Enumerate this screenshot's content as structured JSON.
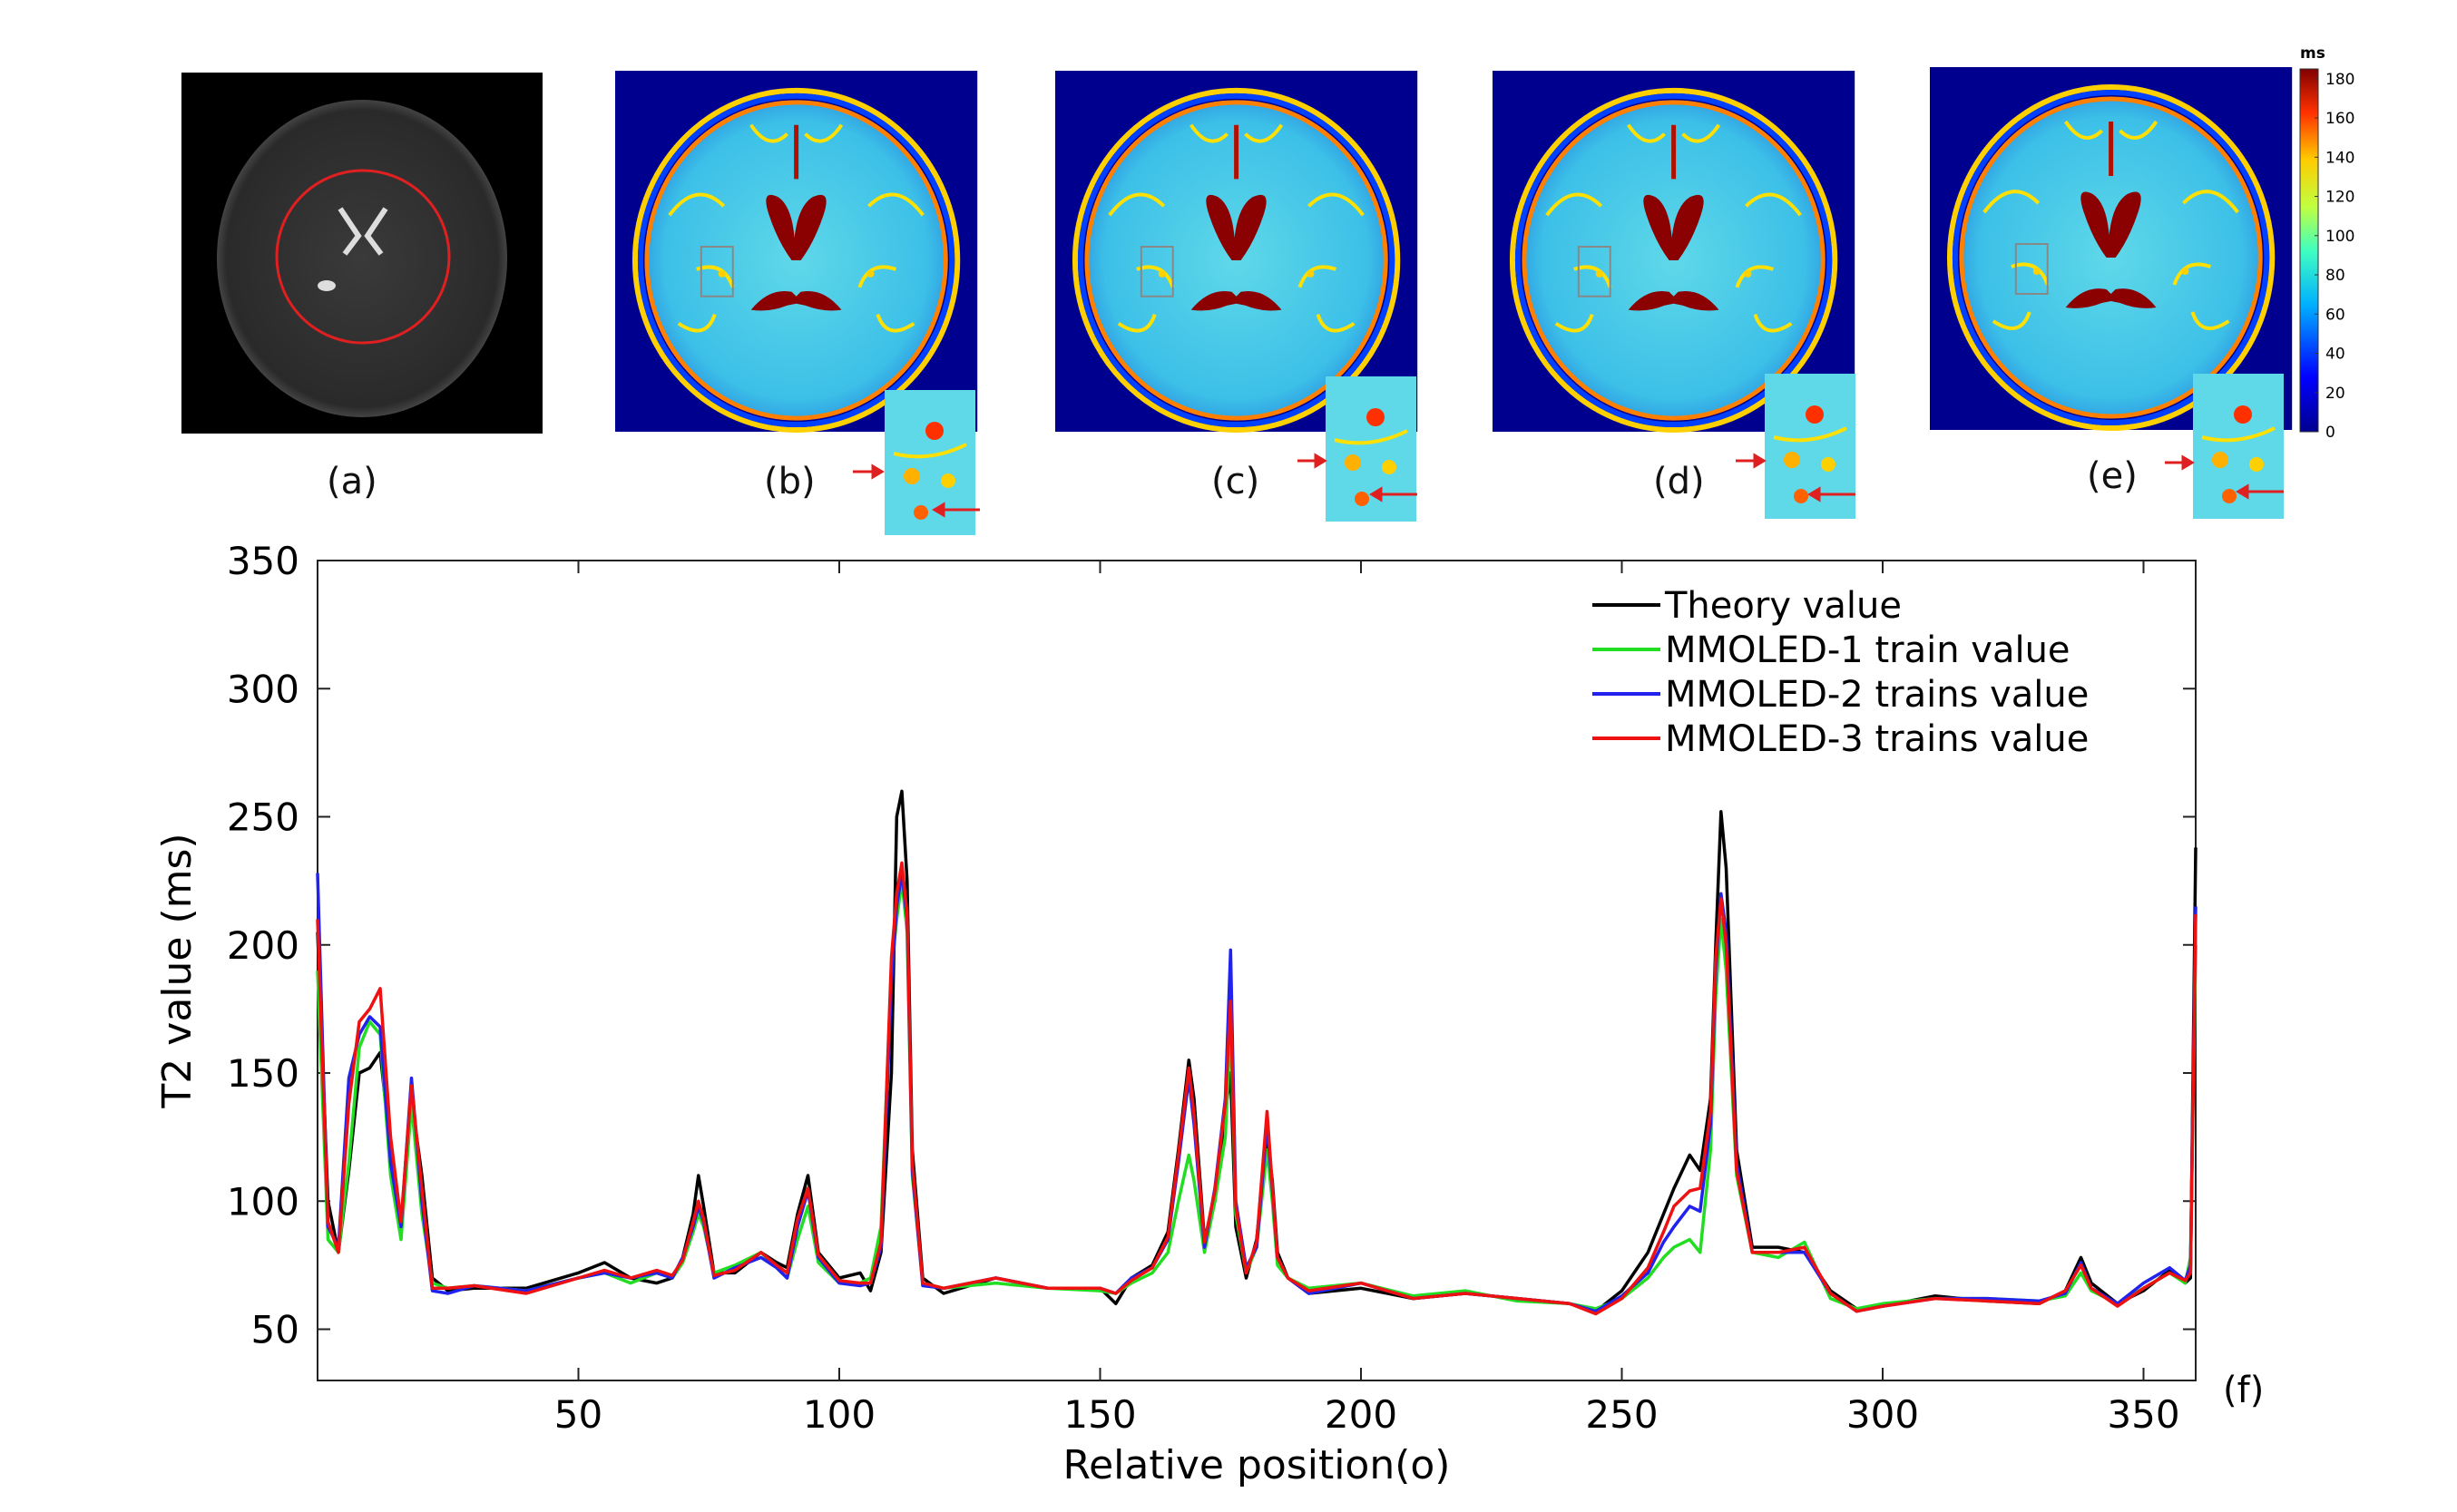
{
  "panels": [
    {
      "label": "(a)",
      "kind": "mri"
    },
    {
      "label": "(b)",
      "kind": "t2map"
    },
    {
      "label": "(c)",
      "kind": "t2map"
    },
    {
      "label": "(d)",
      "kind": "t2map"
    },
    {
      "label": "(e)",
      "kind": "t2map"
    }
  ],
  "colorbar": {
    "unit": "ms",
    "ticks": [
      "0",
      "20",
      "40",
      "60",
      "80",
      "100",
      "120",
      "140",
      "160",
      "180"
    ],
    "tick_values": [
      0,
      20,
      40,
      60,
      80,
      100,
      120,
      140,
      160,
      180
    ],
    "range": [
      0,
      185
    ]
  },
  "chart_data": {
    "type": "line",
    "panel_label": "(f)",
    "xlabel": "Relative position(o)",
    "ylabel": "T2 value (ms)",
    "xlim": [
      0,
      360
    ],
    "ylim": [
      30,
      350
    ],
    "xticks": [
      50,
      100,
      150,
      200,
      250,
      300,
      350
    ],
    "yticks": [
      50,
      100,
      150,
      200,
      250,
      300,
      350
    ],
    "legend_position": "top-right",
    "series": [
      {
        "name": "Theory value",
        "color": "#000000",
        "x": [
          0,
          2,
          4,
          6,
          8,
          10,
          12,
          14,
          16,
          18,
          20,
          22,
          25,
          30,
          40,
          50,
          55,
          60,
          65,
          68,
          70,
          72,
          73,
          74,
          76,
          80,
          85,
          88,
          90,
          92,
          94,
          96,
          100,
          104,
          106,
          108,
          110,
          111,
          112,
          113,
          114,
          116,
          120,
          130,
          140,
          150,
          153,
          156,
          160,
          163,
          165,
          167,
          168,
          170,
          172,
          174,
          175,
          176,
          178,
          180,
          182,
          183,
          184,
          186,
          190,
          200,
          210,
          220,
          230,
          240,
          245,
          250,
          255,
          258,
          260,
          263,
          265,
          267,
          268,
          269,
          270,
          272,
          275,
          280,
          285,
          290,
          295,
          300,
          310,
          320,
          330,
          335,
          338,
          340,
          345,
          350,
          355,
          358,
          359,
          360
        ],
        "y": [
          205,
          100,
          80,
          112,
          150,
          152,
          158,
          120,
          88,
          140,
          110,
          70,
          65,
          66,
          66,
          72,
          76,
          70,
          68,
          70,
          78,
          95,
          110,
          98,
          72,
          72,
          80,
          76,
          74,
          95,
          110,
          80,
          70,
          72,
          65,
          80,
          150,
          250,
          260,
          225,
          120,
          70,
          64,
          70,
          66,
          66,
          60,
          70,
          75,
          88,
          120,
          155,
          140,
          85,
          100,
          135,
          150,
          90,
          70,
          85,
          125,
          108,
          80,
          70,
          64,
          66,
          62,
          64,
          62,
          60,
          57,
          65,
          80,
          95,
          105,
          118,
          112,
          140,
          200,
          252,
          230,
          120,
          82,
          82,
          80,
          65,
          58,
          59,
          63,
          61,
          60,
          65,
          78,
          68,
          60,
          65,
          73,
          68,
          70,
          238
        ]
      },
      {
        "name": "MMOLED-1 train value",
        "color": "#22dd22",
        "x": [
          0,
          2,
          4,
          6,
          8,
          10,
          12,
          14,
          16,
          18,
          20,
          22,
          25,
          30,
          40,
          50,
          55,
          60,
          65,
          68,
          70,
          72,
          73,
          74,
          76,
          80,
          85,
          88,
          90,
          92,
          94,
          96,
          100,
          104,
          106,
          108,
          110,
          111,
          112,
          113,
          114,
          116,
          120,
          130,
          140,
          150,
          153,
          156,
          160,
          163,
          165,
          167,
          168,
          170,
          172,
          174,
          175,
          176,
          178,
          180,
          182,
          183,
          184,
          186,
          190,
          200,
          210,
          220,
          230,
          240,
          245,
          250,
          255,
          258,
          260,
          263,
          265,
          267,
          268,
          269,
          270,
          272,
          275,
          280,
          285,
          290,
          295,
          300,
          310,
          320,
          330,
          335,
          338,
          340,
          345,
          350,
          355,
          358,
          359,
          360
        ],
        "y": [
          190,
          85,
          80,
          115,
          160,
          170,
          165,
          110,
          85,
          138,
          95,
          68,
          66,
          67,
          65,
          70,
          72,
          68,
          72,
          70,
          76,
          88,
          95,
          90,
          72,
          75,
          80,
          74,
          70,
          85,
          98,
          76,
          68,
          68,
          70,
          90,
          190,
          210,
          225,
          205,
          110,
          68,
          66,
          68,
          66,
          65,
          64,
          68,
          72,
          80,
          100,
          118,
          108,
          80,
          100,
          125,
          170,
          95,
          72,
          82,
          120,
          100,
          75,
          70,
          66,
          68,
          63,
          65,
          61,
          60,
          58,
          62,
          70,
          78,
          82,
          85,
          80,
          120,
          180,
          210,
          190,
          110,
          80,
          78,
          84,
          62,
          58,
          60,
          62,
          62,
          61,
          63,
          72,
          65,
          60,
          66,
          72,
          68,
          78,
          200
        ]
      },
      {
        "name": "MMOLED-2 trains value",
        "color": "#2222ee",
        "x": [
          0,
          2,
          4,
          6,
          8,
          10,
          12,
          14,
          16,
          18,
          20,
          22,
          25,
          30,
          40,
          50,
          55,
          60,
          65,
          68,
          70,
          72,
          73,
          74,
          76,
          80,
          85,
          88,
          90,
          92,
          94,
          96,
          100,
          104,
          106,
          108,
          110,
          111,
          112,
          113,
          114,
          116,
          120,
          130,
          140,
          150,
          153,
          156,
          160,
          163,
          165,
          167,
          168,
          170,
          172,
          174,
          175,
          176,
          178,
          180,
          182,
          183,
          184,
          186,
          190,
          200,
          210,
          220,
          230,
          240,
          245,
          250,
          255,
          258,
          260,
          263,
          265,
          267,
          268,
          269,
          270,
          272,
          275,
          280,
          285,
          290,
          295,
          300,
          310,
          320,
          330,
          335,
          338,
          340,
          345,
          350,
          355,
          358,
          359,
          360
        ],
        "y": [
          228,
          90,
          82,
          148,
          165,
          172,
          168,
          115,
          90,
          148,
          100,
          65,
          64,
          67,
          65,
          70,
          72,
          70,
          72,
          70,
          78,
          90,
          98,
          92,
          70,
          74,
          78,
          74,
          70,
          90,
          104,
          78,
          68,
          67,
          68,
          82,
          185,
          215,
          228,
          210,
          112,
          67,
          66,
          70,
          66,
          66,
          64,
          70,
          74,
          85,
          115,
          148,
          130,
          82,
          105,
          140,
          198,
          100,
          74,
          82,
          130,
          105,
          78,
          70,
          64,
          68,
          62,
          64,
          62,
          60,
          57,
          63,
          72,
          84,
          90,
          98,
          96,
          130,
          190,
          220,
          205,
          115,
          80,
          80,
          80,
          64,
          57,
          59,
          62,
          62,
          61,
          64,
          76,
          66,
          60,
          68,
          74,
          69,
          75,
          215
        ]
      },
      {
        "name": "MMOLED-3 trains value",
        "color": "#ee1111",
        "x": [
          0,
          2,
          4,
          6,
          8,
          10,
          12,
          14,
          16,
          18,
          20,
          22,
          25,
          30,
          40,
          50,
          55,
          60,
          65,
          68,
          70,
          72,
          73,
          74,
          76,
          80,
          85,
          88,
          90,
          92,
          94,
          96,
          100,
          104,
          106,
          108,
          110,
          111,
          112,
          113,
          114,
          116,
          120,
          130,
          140,
          150,
          153,
          156,
          160,
          163,
          165,
          167,
          168,
          170,
          172,
          174,
          175,
          176,
          178,
          180,
          182,
          183,
          184,
          186,
          190,
          200,
          210,
          220,
          230,
          240,
          245,
          250,
          255,
          258,
          260,
          263,
          265,
          267,
          268,
          269,
          270,
          272,
          275,
          280,
          285,
          290,
          295,
          300,
          310,
          320,
          330,
          335,
          338,
          340,
          345,
          350,
          355,
          358,
          359,
          360
        ],
        "y": [
          210,
          92,
          80,
          138,
          170,
          175,
          183,
          125,
          92,
          145,
          105,
          66,
          66,
          67,
          64,
          70,
          73,
          70,
          73,
          71,
          77,
          92,
          100,
          93,
          71,
          73,
          80,
          75,
          72,
          93,
          105,
          79,
          69,
          68,
          68,
          84,
          195,
          220,
          232,
          212,
          115,
          68,
          66,
          70,
          66,
          66,
          64,
          69,
          74,
          86,
          118,
          152,
          134,
          84,
          104,
          138,
          178,
          98,
          72,
          84,
          135,
          106,
          78,
          70,
          65,
          68,
          62,
          64,
          62,
          60,
          56,
          62,
          74,
          88,
          98,
          104,
          105,
          135,
          195,
          218,
          200,
          112,
          80,
          80,
          82,
          64,
          57,
          59,
          62,
          61,
          60,
          65,
          75,
          66,
          59,
          66,
          72,
          69,
          72,
          212
        ]
      }
    ]
  }
}
